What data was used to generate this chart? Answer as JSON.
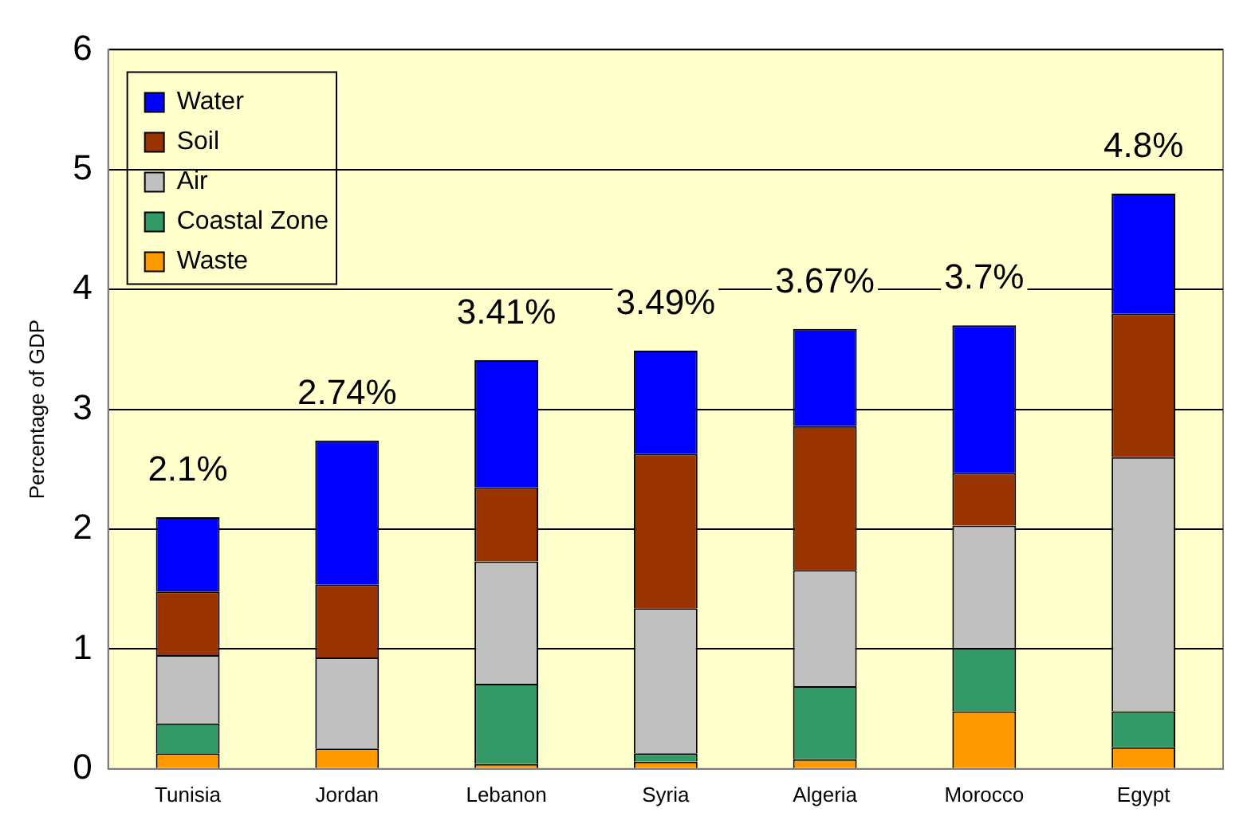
{
  "chart_data": {
    "type": "bar",
    "stacked": true,
    "ylabel": "Percentage of GDP",
    "categories": [
      "Tunisia",
      "Jordan",
      "Lebanon",
      "Syria",
      "Algeria",
      "Morocco",
      "Egypt"
    ],
    "series": [
      {
        "name": "Waste",
        "color": "#ff9900",
        "values": [
          0.13,
          0.17,
          0.04,
          0.06,
          0.08,
          0.48,
          0.18
        ]
      },
      {
        "name": "Coastal Zone",
        "color": "#339966",
        "values": [
          0.25,
          0,
          0.67,
          0.07,
          0.61,
          0.53,
          0.3
        ]
      },
      {
        "name": "Air",
        "color": "#c0c0c0",
        "values": [
          0.57,
          0.76,
          1.02,
          1.21,
          0.97,
          1.02,
          2.12
        ]
      },
      {
        "name": "Soil",
        "color": "#993300",
        "values": [
          0.53,
          0.61,
          0.62,
          1.29,
          1.2,
          0.44,
          1.2
        ]
      },
      {
        "name": "Water",
        "color": "#0000ff",
        "values": [
          0.62,
          1.2,
          1.06,
          0.86,
          0.81,
          1.23,
          1.0
        ]
      }
    ],
    "totals": [
      "2.1%",
      "2.74%",
      "3.41%",
      "3.49%",
      "3.67%",
      "3.7%",
      "4.8%"
    ],
    "ylim": [
      0,
      6
    ],
    "yticks": [
      0,
      1,
      2,
      3,
      4,
      5,
      6
    ],
    "grid": "y",
    "legend": "top left"
  }
}
